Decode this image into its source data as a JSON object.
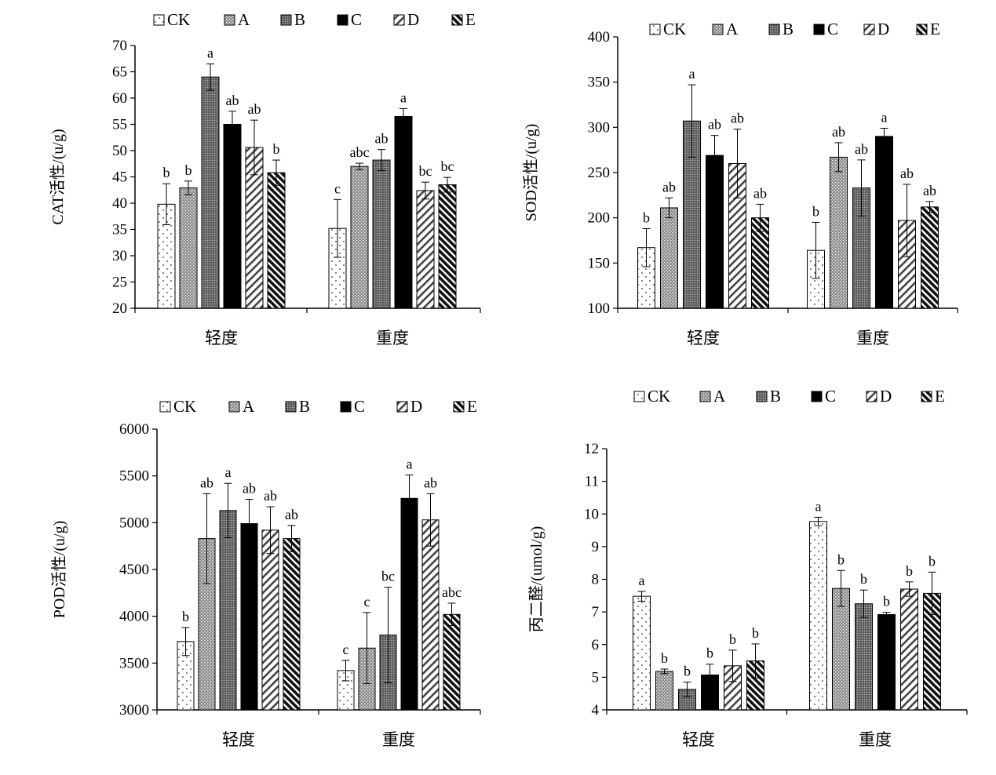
{
  "legend": {
    "series": [
      "CK",
      "A",
      "B",
      "C",
      "D",
      "E"
    ]
  },
  "chart_data": [
    {
      "type": "bar",
      "ylabel": "CAT活性/(u/g)",
      "categories": [
        "轻度",
        "重度"
      ],
      "ylim": [
        20,
        70
      ],
      "yticks": [
        20,
        25,
        30,
        35,
        40,
        45,
        50,
        55,
        60,
        65,
        70
      ],
      "series": [
        {
          "name": "CK",
          "values": [
            39.8,
            35.2
          ],
          "errors": [
            3.9,
            5.5
          ],
          "labels": [
            "b",
            "c"
          ]
        },
        {
          "name": "A",
          "values": [
            42.9,
            47.0
          ],
          "errors": [
            1.3,
            0.6
          ],
          "labels": [
            "b",
            "abc"
          ]
        },
        {
          "name": "B",
          "values": [
            64.0,
            48.2
          ],
          "errors": [
            2.5,
            2.0
          ],
          "labels": [
            "a",
            "ab"
          ]
        },
        {
          "name": "C",
          "values": [
            55.0,
            56.5
          ],
          "errors": [
            2.5,
            1.5
          ],
          "labels": [
            "ab",
            "a"
          ]
        },
        {
          "name": "D",
          "values": [
            50.6,
            42.4
          ],
          "errors": [
            5.2,
            1.6
          ],
          "labels": [
            "ab",
            "bc"
          ]
        },
        {
          "name": "E",
          "values": [
            45.8,
            43.5
          ],
          "errors": [
            2.4,
            1.4
          ],
          "labels": [
            "b",
            "bc"
          ]
        }
      ]
    },
    {
      "type": "bar",
      "ylabel": "SOD活性/(u/g)",
      "categories": [
        "轻度",
        "重度"
      ],
      "ylim": [
        100,
        400
      ],
      "yticks": [
        100,
        150,
        200,
        250,
        300,
        350,
        400
      ],
      "series": [
        {
          "name": "CK",
          "values": [
            167,
            164
          ],
          "errors": [
            21,
            31
          ],
          "labels": [
            "b",
            "b"
          ]
        },
        {
          "name": "A",
          "values": [
            211,
            267
          ],
          "errors": [
            11,
            16
          ],
          "labels": [
            "ab",
            "ab"
          ]
        },
        {
          "name": "B",
          "values": [
            307,
            233
          ],
          "errors": [
            40,
            31
          ],
          "labels": [
            "a",
            "ab"
          ]
        },
        {
          "name": "C",
          "values": [
            269,
            290
          ],
          "errors": [
            22,
            9
          ],
          "labels": [
            "ab",
            "a"
          ]
        },
        {
          "name": "D",
          "values": [
            260,
            197
          ],
          "errors": [
            38,
            40
          ],
          "labels": [
            "ab",
            "ab"
          ]
        },
        {
          "name": "E",
          "values": [
            200,
            212
          ],
          "errors": [
            15,
            6
          ],
          "labels": [
            "ab",
            "ab"
          ]
        }
      ]
    },
    {
      "type": "bar",
      "ylabel": "POD活性/(u/g)",
      "categories": [
        "轻度",
        "重度"
      ],
      "ylim": [
        3000,
        6000
      ],
      "yticks": [
        3000,
        3500,
        4000,
        4500,
        5000,
        5500,
        6000
      ],
      "series": [
        {
          "name": "CK",
          "values": [
            3730,
            3420
          ],
          "errors": [
            150,
            110
          ],
          "labels": [
            "b",
            "c"
          ]
        },
        {
          "name": "A",
          "values": [
            4830,
            3660
          ],
          "errors": [
            480,
            380
          ],
          "labels": [
            "ab",
            "c"
          ]
        },
        {
          "name": "B",
          "values": [
            5130,
            3800
          ],
          "errors": [
            290,
            510
          ],
          "labels": [
            "a",
            "bc"
          ]
        },
        {
          "name": "C",
          "values": [
            4990,
            5260
          ],
          "errors": [
            260,
            250
          ],
          "labels": [
            "ab",
            "a"
          ]
        },
        {
          "name": "D",
          "values": [
            4920,
            5030
          ],
          "errors": [
            250,
            280
          ],
          "labels": [
            "ab",
            "ab"
          ]
        },
        {
          "name": "E",
          "values": [
            4830,
            4020
          ],
          "errors": [
            140,
            120
          ],
          "labels": [
            "ab",
            "abc"
          ]
        }
      ]
    },
    {
      "type": "bar",
      "ylabel": "丙二醛/(umol/g)",
      "categories": [
        "轻度",
        "重度"
      ],
      "ylim": [
        4,
        12
      ],
      "yticks": [
        4,
        5,
        6,
        7,
        8,
        9,
        10,
        11,
        12
      ],
      "series": [
        {
          "name": "CK",
          "values": [
            7.48,
            9.77
          ],
          "errors": [
            0.15,
            0.13
          ],
          "labels": [
            "a",
            "a"
          ]
        },
        {
          "name": "A",
          "values": [
            5.18,
            7.72
          ],
          "errors": [
            0.07,
            0.55
          ],
          "labels": [
            "b",
            "b"
          ]
        },
        {
          "name": "B",
          "values": [
            4.63,
            7.25
          ],
          "errors": [
            0.22,
            0.42
          ],
          "labels": [
            "b",
            "b"
          ]
        },
        {
          "name": "C",
          "values": [
            5.07,
            6.92
          ],
          "errors": [
            0.33,
            0.07
          ],
          "labels": [
            "b",
            "b"
          ]
        },
        {
          "name": "D",
          "values": [
            5.35,
            7.7
          ],
          "errors": [
            0.48,
            0.22
          ],
          "labels": [
            "b",
            "b"
          ]
        },
        {
          "name": "E",
          "values": [
            5.5,
            7.57
          ],
          "errors": [
            0.52,
            0.65
          ],
          "labels": [
            "b",
            "b"
          ]
        }
      ]
    }
  ]
}
